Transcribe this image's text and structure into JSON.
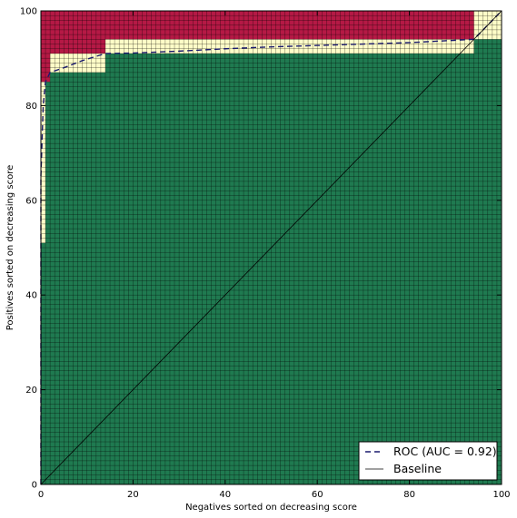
{
  "chart_data": {
    "type": "line",
    "title": "",
    "xlabel": "Negatives sorted on decreasing score",
    "ylabel": "Positives sorted on decreasing score",
    "xlim": [
      0,
      100
    ],
    "ylim": [
      0,
      100
    ],
    "xticks": [
      "0",
      "20",
      "40",
      "60",
      "80",
      "100"
    ],
    "yticks": [
      "0",
      "20",
      "40",
      "60",
      "80",
      "100"
    ],
    "grid": true,
    "legend_position": "lower-right",
    "colors": {
      "true_region": "#1f7a50",
      "false_region": "#b51945",
      "tie_region": "#fffdc8",
      "roc_line": "#1a1a6e",
      "baseline": "#000000",
      "grid": "#000000"
    },
    "series": [
      {
        "name": "ROC (AUC = 0.92)",
        "style": "dashed",
        "x": [
          0,
          0,
          0,
          0.5,
          1,
          2,
          5,
          9,
          14,
          20,
          30,
          40,
          50,
          60,
          70,
          80,
          90,
          94,
          100
        ],
        "y": [
          0,
          51,
          65,
          80,
          85,
          87,
          88,
          89.5,
          91,
          91.1,
          91.5,
          92,
          92.4,
          92.7,
          93,
          93.3,
          93.8,
          94,
          100
        ]
      },
      {
        "name": "Baseline",
        "style": "solid",
        "x": [
          0,
          100
        ],
        "y": [
          0,
          100
        ]
      }
    ],
    "regions": {
      "green_steps": [
        [
          0,
          51
        ],
        [
          1,
          85
        ],
        [
          2,
          87
        ],
        [
          14,
          91
        ],
        [
          94,
          94
        ]
      ],
      "red_steps": [
        [
          0,
          85
        ],
        [
          2,
          91
        ],
        [
          14,
          94
        ],
        [
          94,
          100
        ]
      ]
    }
  }
}
